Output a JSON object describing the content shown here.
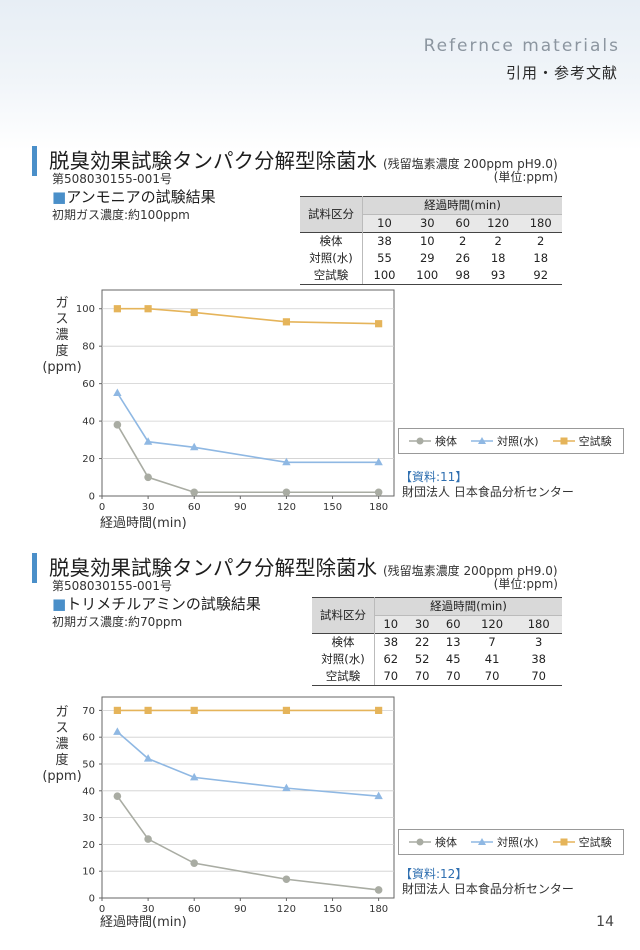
{
  "header": {
    "en": "Refernce materials",
    "jp": "引用・参考文献"
  },
  "page_number": "14",
  "colors": {
    "sample": "#a9aca3",
    "control": "#8fb8e3",
    "blank": "#e5b45a",
    "accent": "#4a8fc9"
  },
  "sections": [
    {
      "title": "脱臭効果試験タンパク分解型除菌水",
      "title_note": "(残留塩素濃度 200ppm pH9.0)",
      "unit": "(単位:ppm)",
      "code": "第508030155-001号",
      "subtitle_mark": "■",
      "subtitle": "アンモニアの試験結果",
      "initial": "初期ガス濃度:約100ppm",
      "table": {
        "corner": "試料区分",
        "group_header": "経過時間(min)",
        "times": [
          "10",
          "30",
          "60",
          "120",
          "180"
        ],
        "rows": [
          {
            "label": "検体",
            "values": [
              "38",
              "10",
              "2",
              "2",
              "2"
            ]
          },
          {
            "label": "対照(水)",
            "values": [
              "55",
              "29",
              "26",
              "18",
              "18"
            ]
          },
          {
            "label": "空試験",
            "values": [
              "100",
              "100",
              "98",
              "93",
              "92"
            ]
          }
        ]
      },
      "source_tag": "【資料:11】",
      "source_org": "財団法人 日本食品分析センター",
      "y_label": [
        "ガ",
        "ス",
        "濃",
        "度",
        "(ppm)"
      ],
      "x_label": "経過時間(min)",
      "legend": [
        "検体",
        "対照(水)",
        "空試験"
      ]
    },
    {
      "title": "脱臭効果試験タンパク分解型除菌水",
      "title_note": "(残留塩素濃度 200ppm pH9.0)",
      "unit": "(単位:ppm)",
      "code": "第508030155-001号",
      "subtitle_mark": "■",
      "subtitle": "トリメチルアミンの試験結果",
      "initial": "初期ガス濃度:約70ppm",
      "table": {
        "corner": "試料区分",
        "group_header": "経過時間(min)",
        "times": [
          "10",
          "30",
          "60",
          "120",
          "180"
        ],
        "rows": [
          {
            "label": "検体",
            "values": [
              "38",
              "22",
              "13",
              "7",
              "3"
            ]
          },
          {
            "label": "対照(水)",
            "values": [
              "62",
              "52",
              "45",
              "41",
              "38"
            ]
          },
          {
            "label": "空試験",
            "values": [
              "70",
              "70",
              "70",
              "70",
              "70"
            ]
          }
        ]
      },
      "source_tag": "【資料:12】",
      "source_org": "財団法人 日本食品分析センター",
      "y_label": [
        "ガ",
        "ス",
        "濃",
        "度",
        "(ppm)"
      ],
      "x_label": "経過時間(min)",
      "legend": [
        "検体",
        "対照(水)",
        "空試験"
      ]
    }
  ],
  "chart_data": [
    {
      "type": "line",
      "x": [
        10,
        30,
        60,
        120,
        180
      ],
      "series": [
        {
          "name": "検体",
          "values": [
            38,
            10,
            2,
            2,
            2
          ],
          "marker": "circle"
        },
        {
          "name": "対照(水)",
          "values": [
            55,
            29,
            26,
            18,
            18
          ],
          "marker": "triangle"
        },
        {
          "name": "空試験",
          "values": [
            100,
            100,
            98,
            93,
            92
          ],
          "marker": "square"
        }
      ],
      "xticks": [
        0,
        30,
        60,
        90,
        120,
        150,
        180
      ],
      "yticks": [
        0,
        20,
        40,
        60,
        80,
        100
      ],
      "xlim": [
        0,
        190
      ],
      "ylim": [
        0,
        110
      ],
      "xlabel": "経過時間(min)",
      "ylabel": "ガス濃度(ppm)",
      "grid": "horizontal",
      "legend": "bottom-right"
    },
    {
      "type": "line",
      "x": [
        10,
        30,
        60,
        120,
        180
      ],
      "series": [
        {
          "name": "検体",
          "values": [
            38,
            22,
            13,
            7,
            3
          ],
          "marker": "circle"
        },
        {
          "name": "対照(水)",
          "values": [
            62,
            52,
            45,
            41,
            38
          ],
          "marker": "triangle"
        },
        {
          "name": "空試験",
          "values": [
            70,
            70,
            70,
            70,
            70
          ],
          "marker": "square"
        }
      ],
      "xticks": [
        0,
        30,
        60,
        90,
        120,
        150,
        180
      ],
      "yticks": [
        0,
        10,
        20,
        30,
        40,
        50,
        60,
        70
      ],
      "xlim": [
        0,
        190
      ],
      "ylim": [
        0,
        75
      ],
      "xlabel": "経過時間(min)",
      "ylabel": "ガス濃度(ppm)",
      "grid": "horizontal",
      "legend": "bottom-right"
    }
  ]
}
